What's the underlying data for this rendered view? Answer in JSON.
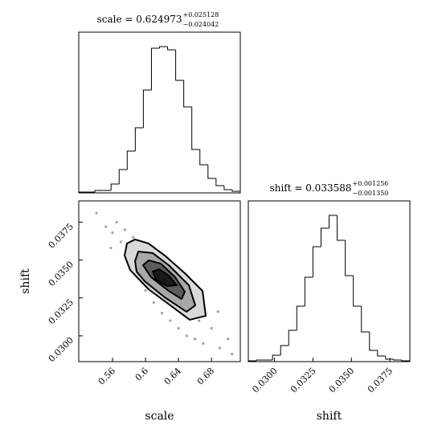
{
  "chart_data": [
    {
      "type": "histogram",
      "title": "scale = 0.624973",
      "title_upper": "+0.025128",
      "title_lower": "−0.024042",
      "bins": [
        0.519,
        0.5288,
        0.5386,
        0.5484,
        0.5582,
        0.568,
        0.5778,
        0.5876,
        0.5974,
        0.6072,
        0.617,
        0.6268,
        0.6366,
        0.6464,
        0.6562,
        0.666,
        0.6758,
        0.6856,
        0.6954,
        0.7052,
        0.715
      ],
      "values": [
        1,
        1,
        3,
        3,
        11,
        29,
        52,
        81,
        128,
        180,
        182,
        178,
        140,
        107,
        54,
        35,
        18,
        9,
        4,
        2
      ],
      "color": "#000000",
      "xlim": [
        0.519,
        0.715
      ],
      "ylim": [
        0,
        200
      ]
    },
    {
      "type": "scatter",
      "xlabel": "scale",
      "ylabel": "shift",
      "x": [
        0.5405,
        0.552,
        0.56,
        0.565,
        0.57,
        0.558,
        0.575,
        0.58,
        0.585,
        0.59,
        0.595,
        0.6,
        0.605,
        0.61,
        0.615,
        0.62,
        0.625,
        0.63,
        0.635,
        0.64,
        0.645,
        0.65,
        0.655,
        0.66,
        0.665,
        0.67,
        0.68,
        0.69,
        0.7,
        0.705,
        0.688,
        0.6,
        0.58,
        0.64
      ],
      "values": [
        0.0381,
        0.0372,
        0.0368,
        0.0375,
        0.0362,
        0.0358,
        0.037,
        0.0348,
        0.0365,
        0.034,
        0.0358,
        0.033,
        0.0352,
        0.0322,
        0.0345,
        0.0315,
        0.034,
        0.031,
        0.033,
        0.0305,
        0.0325,
        0.03,
        0.0318,
        0.0298,
        0.031,
        0.0295,
        0.0305,
        0.0292,
        0.0298,
        0.0288,
        0.0316,
        0.0345,
        0.0355,
        0.032
      ],
      "color": "#8a8a8a",
      "contours": [
        {
          "color": "#d9d9d9",
          "x": [
            0.5746,
            0.5775,
            0.5873,
            0.6038,
            0.6233,
            0.6477,
            0.6692,
            0.6731,
            0.6536,
            0.6302,
            0.6038,
            0.5814
          ],
          "y": [
            0.0353,
            0.03609,
            0.03636,
            0.03609,
            0.0353,
            0.03413,
            0.03296,
            0.03132,
            0.03106,
            0.03201,
            0.03307,
            0.03434
          ]
        },
        {
          "color": "#a8a8a8",
          "x": [
            0.5873,
            0.5912,
            0.6087,
            0.6282,
            0.6526,
            0.6604,
            0.6497,
            0.6233,
            0.599,
            0.5892
          ],
          "y": [
            0.03493,
            0.03556,
            0.03546,
            0.03466,
            0.03334,
            0.03201,
            0.03159,
            0.03254,
            0.0336,
            0.03424
          ]
        },
        {
          "color": "#5c5c5c",
          "x": [
            0.597,
            0.6038,
            0.6185,
            0.636,
            0.6477,
            0.6438,
            0.6282,
            0.6068
          ],
          "y": [
            0.03466,
            0.03498,
            0.03477,
            0.03387,
            0.03291,
            0.03243,
            0.03296,
            0.03387
          ]
        },
        {
          "color": "#1a1a1a",
          "x": [
            0.6087,
            0.6165,
            0.6282,
            0.638,
            0.6263,
            0.6126
          ],
          "y": [
            0.03424,
            0.0344,
            0.03398,
            0.03334,
            0.03328,
            0.03371
          ]
        }
      ],
      "xlim": [
        0.519,
        0.715
      ],
      "ylim": [
        0.0283,
        0.0389
      ],
      "xticks": [
        0.56,
        0.6,
        0.64,
        0.68
      ],
      "yticks": [
        {
          "value": 0.03,
          "label": "0.0300"
        },
        0.0325,
        {
          "value": 0.035,
          "label": "0.0350"
        },
        0.0375
      ]
    },
    {
      "type": "histogram",
      "title": "shift = 0.033588",
      "title_upper": "+0.001256",
      "title_lower": "−0.001350",
      "xlabel": "shift",
      "bins": [
        0.0283,
        0.028825,
        0.02935,
        0.029875,
        0.0304,
        0.030925,
        0.03145,
        0.031975,
        0.0325,
        0.033025,
        0.03355,
        0.034075,
        0.0346,
        0.035125,
        0.03565,
        0.036175,
        0.0367,
        0.037225,
        0.03775,
        0.038275,
        0.0388
      ],
      "values": [
        1,
        2,
        2,
        8,
        20,
        39,
        69,
        105,
        143,
        166,
        182,
        151,
        107,
        69,
        37,
        14,
        7,
        3,
        2,
        1
      ],
      "color": "#000000",
      "xlim": [
        0.0283,
        0.0388
      ],
      "ylim": [
        0,
        200
      ],
      "xticks": [
        {
          "value": 0.03,
          "label": "0.0300"
        },
        0.0325,
        {
          "value": 0.035,
          "label": "0.0350"
        },
        0.0375
      ]
    }
  ]
}
